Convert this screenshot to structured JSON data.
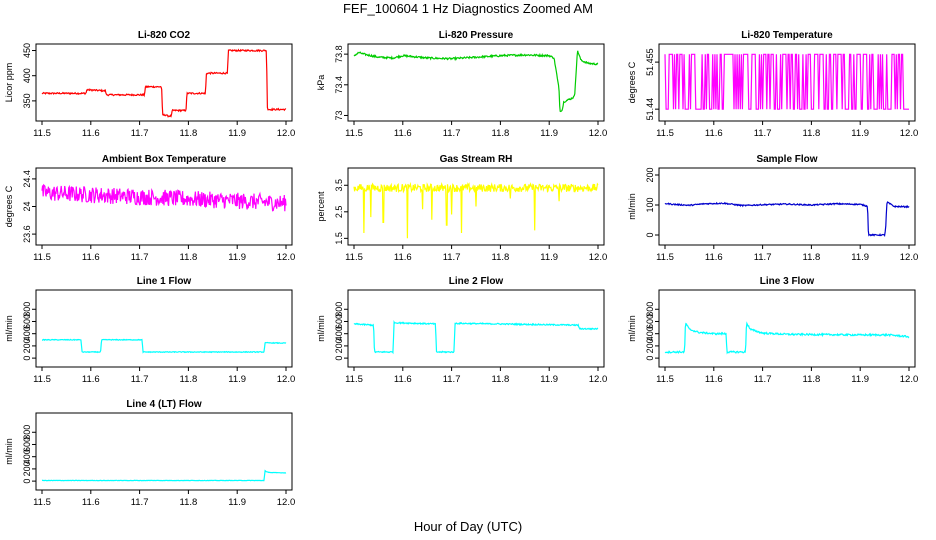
{
  "figure": {
    "title": "FEF_100604  1 Hz Diagnostics Zoomed AM",
    "xlabel": "Hour of Day (UTC)"
  },
  "chart_data": [
    {
      "type": "line",
      "title": "Li-820 CO2",
      "ylabel": "Licor ppm",
      "color": "#ff0000",
      "xlim": [
        11.5,
        12.0
      ],
      "ylim": [
        318,
        455
      ],
      "yticks": [
        350,
        400,
        450
      ],
      "xticks": [
        "11.5",
        "11.6",
        "11.7",
        "11.8",
        "11.9",
        "12.0"
      ],
      "noise": 1.5,
      "x": [
        11.5,
        11.59,
        11.592,
        11.63,
        11.632,
        11.71,
        11.712,
        11.745,
        11.747,
        11.755,
        11.757,
        11.765,
        11.767,
        11.795,
        11.797,
        11.835,
        11.837,
        11.88,
        11.882,
        11.96,
        11.962,
        12.0
      ],
      "values": [
        365,
        365,
        372,
        370,
        362,
        362,
        378,
        378,
        322,
        322,
        320,
        320,
        331,
        331,
        365,
        365,
        405,
        405,
        450,
        450,
        333,
        333
      ]
    },
    {
      "type": "line",
      "title": "Li-820 Pressure",
      "ylabel": "kPa",
      "color": "#00cc00",
      "xlim": [
        11.5,
        12.0
      ],
      "ylim": [
        72.98,
        73.88
      ],
      "yticks": [
        73.0,
        73.4,
        73.8
      ],
      "xticks": [
        "11.5",
        "11.6",
        "11.7",
        "11.8",
        "11.9",
        "12.0"
      ],
      "noise": 0.012,
      "x": [
        11.5,
        11.51,
        11.52,
        11.55,
        11.58,
        11.6,
        11.65,
        11.7,
        11.75,
        11.8,
        11.85,
        11.9,
        11.91,
        11.92,
        11.922,
        11.927,
        11.93,
        11.945,
        11.952,
        11.955,
        11.958,
        11.965,
        11.98,
        12.0
      ],
      "values": [
        73.78,
        73.82,
        73.8,
        73.76,
        73.75,
        73.78,
        73.75,
        73.74,
        73.76,
        73.78,
        73.79,
        73.78,
        73.75,
        73.35,
        73.05,
        73.08,
        73.18,
        73.22,
        73.25,
        73.55,
        73.85,
        73.72,
        73.68,
        73.67
      ]
    },
    {
      "type": "line",
      "title": "Li-820 Temperature",
      "ylabel": "degrees C",
      "color": "#ff00ff",
      "xlim": [
        11.5,
        12.0
      ],
      "ylim": [
        51.4375,
        51.4595
      ],
      "yticks": [
        51.44,
        51.455
      ],
      "xticks": [
        "11.5",
        "11.6",
        "11.7",
        "11.8",
        "11.9",
        "12.0"
      ],
      "levels": [
        51.44,
        51.4575
      ],
      "values": []
    },
    {
      "type": "line",
      "title": "Ambient Box Temperature",
      "ylabel": "degrees C",
      "color": "#ff00ff",
      "xlim": [
        11.5,
        12.0
      ],
      "ylim": [
        23.5,
        24.5
      ],
      "yticks": [
        23.6,
        24.0,
        24.4
      ],
      "xticks": [
        "11.5",
        "11.6",
        "11.7",
        "11.8",
        "11.9",
        "12.0"
      ],
      "noise": 0.12,
      "x": [
        11.5,
        12.0
      ],
      "values": [
        24.2,
        24.05
      ]
    },
    {
      "type": "line",
      "title": "Gas Stream RH",
      "ylabel": "percent",
      "color": "#ffff00",
      "xlim": [
        11.5,
        12.0
      ],
      "ylim": [
        1.4,
        4.0
      ],
      "yticks": [
        1.5,
        2.5,
        3.5
      ],
      "xticks": [
        "11.5",
        "11.6",
        "11.7",
        "11.8",
        "11.9",
        "12.0"
      ],
      "noise": 0.15,
      "x": [
        11.5,
        12.0
      ],
      "values": [
        3.4,
        3.4
      ],
      "dips": [
        [
          11.52,
          1.7
        ],
        [
          11.535,
          2.3
        ],
        [
          11.56,
          2.1
        ],
        [
          11.61,
          1.5
        ],
        [
          11.64,
          2.6
        ],
        [
          11.66,
          2.2
        ],
        [
          11.69,
          2.0
        ],
        [
          11.7,
          2.4
        ],
        [
          11.72,
          1.7
        ],
        [
          11.75,
          2.7
        ],
        [
          11.82,
          3.0
        ],
        [
          11.87,
          1.8
        ],
        [
          11.92,
          2.9
        ]
      ]
    },
    {
      "type": "line",
      "title": "Sample Flow",
      "ylabel": "ml/min",
      "color": "#0000cc",
      "xlim": [
        11.5,
        12.0
      ],
      "ylim": [
        -20,
        210
      ],
      "yticks": [
        0,
        100,
        200
      ],
      "xticks": [
        "11.5",
        "11.6",
        "11.7",
        "11.8",
        "11.9",
        "12.0"
      ],
      "noise": 2,
      "x": [
        11.5,
        11.52,
        11.55,
        11.58,
        11.62,
        11.66,
        11.7,
        11.75,
        11.8,
        11.85,
        11.9,
        11.915,
        11.917,
        11.95,
        11.952,
        11.955,
        11.96,
        11.97,
        12.0
      ],
      "values": [
        105,
        102,
        99,
        104,
        106,
        98,
        101,
        103,
        100,
        104,
        102,
        96,
        0,
        0,
        20,
        110,
        105,
        95,
        94
      ]
    },
    {
      "type": "line",
      "title": "Line 1 Flow",
      "ylabel": "ml/min",
      "color": "#00ffff",
      "xlim": [
        11.5,
        12.0
      ],
      "ylim": [
        -80,
        1050
      ],
      "yticks": [
        0,
        200,
        400,
        600,
        800
      ],
      "xticks": [
        "11.5",
        "11.6",
        "11.7",
        "11.8",
        "11.9",
        "12.0"
      ],
      "noise": 6,
      "x": [
        11.5,
        11.58,
        11.582,
        11.62,
        11.622,
        11.705,
        11.707,
        11.955,
        11.957,
        12.0
      ],
      "values": [
        300,
        300,
        100,
        100,
        300,
        300,
        100,
        100,
        250,
        245
      ]
    },
    {
      "type": "line",
      "title": "Line 2 Flow",
      "ylabel": "ml/min",
      "color": "#00ffff",
      "xlim": [
        11.5,
        12.0
      ],
      "ylim": [
        -80,
        1050
      ],
      "yticks": [
        0,
        200,
        400,
        600,
        800
      ],
      "xticks": [
        "11.5",
        "11.6",
        "11.7",
        "11.8",
        "11.9",
        "12.0"
      ],
      "noise": 10,
      "x": [
        11.5,
        11.54,
        11.542,
        11.58,
        11.582,
        11.667,
        11.669,
        11.705,
        11.707,
        11.96,
        11.962,
        12.0
      ],
      "values": [
        560,
        540,
        100,
        100,
        580,
        560,
        100,
        100,
        570,
        540,
        480,
        480
      ]
    },
    {
      "type": "line",
      "title": "Line 3 Flow",
      "ylabel": "ml/min",
      "color": "#00ffff",
      "xlim": [
        11.5,
        12.0
      ],
      "ylim": [
        -80,
        1050
      ],
      "yticks": [
        0,
        200,
        400,
        600,
        800
      ],
      "xticks": [
        "11.5",
        "11.6",
        "11.7",
        "11.8",
        "11.9",
        "12.0"
      ],
      "noise": 14,
      "x": [
        11.5,
        11.54,
        11.542,
        11.55,
        11.57,
        11.6,
        11.625,
        11.627,
        11.665,
        11.667,
        11.675,
        11.7,
        11.75,
        11.9,
        11.96,
        12.0
      ],
      "values": [
        100,
        100,
        580,
        470,
        420,
        400,
        400,
        100,
        100,
        580,
        470,
        410,
        390,
        380,
        380,
        350
      ]
    },
    {
      "type": "line",
      "title": "Line 4 (LT) Flow",
      "ylabel": "ml/min",
      "color": "#00ffff",
      "xlim": [
        11.5,
        12.0
      ],
      "ylim": [
        -80,
        1050
      ],
      "yticks": [
        0,
        200,
        400,
        600,
        800
      ],
      "xticks": [
        "11.5",
        "11.6",
        "11.7",
        "11.8",
        "11.9",
        "12.0"
      ],
      "noise": 3,
      "x": [
        11.5,
        11.955,
        11.957,
        11.96,
        11.97,
        12.0
      ],
      "values": [
        10,
        10,
        170,
        150,
        140,
        135
      ]
    }
  ]
}
